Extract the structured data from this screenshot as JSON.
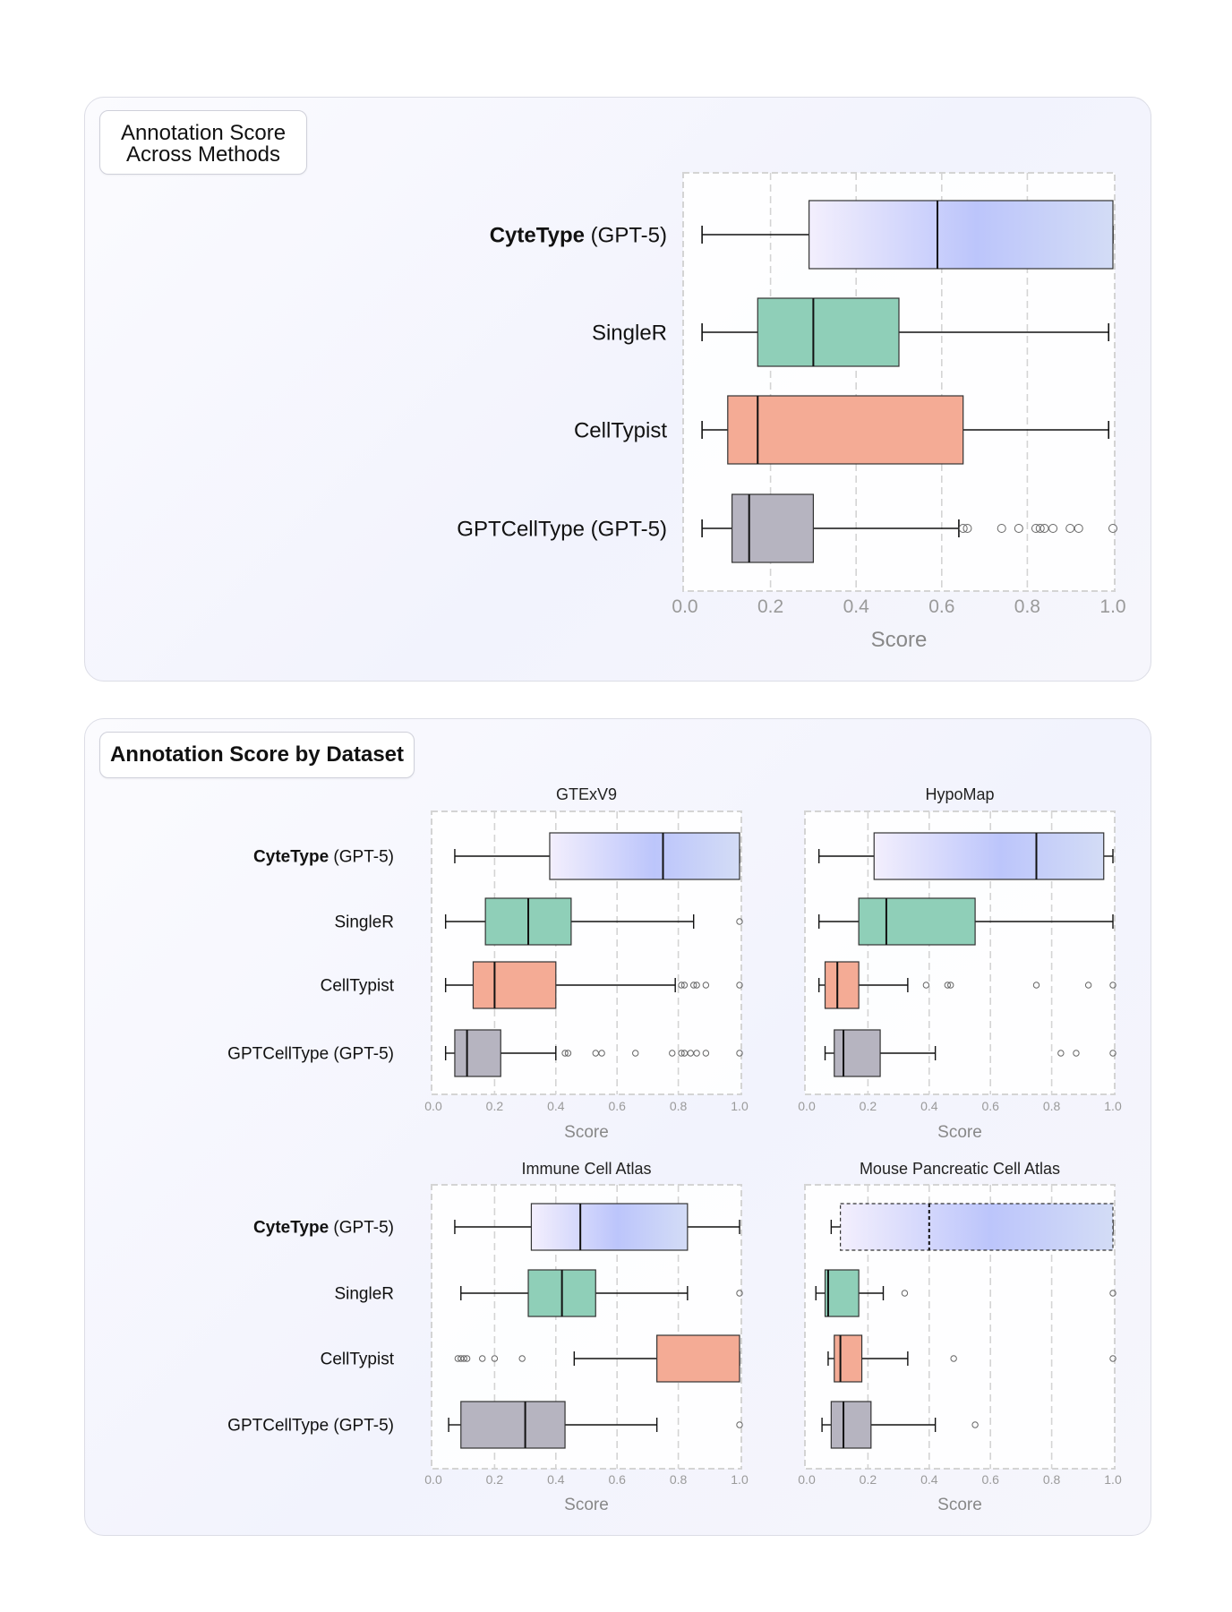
{
  "panel1": {
    "title_line1": "Annotation Score",
    "title_line2": "Across Methods"
  },
  "panel2": {
    "title": "Annotation Score by Dataset"
  },
  "colors": {
    "cytetype_gradient": [
      "#f3effd",
      "#bcc5fb",
      "#d3dcf6"
    ],
    "singler": "#8fcfb8",
    "celltypist": "#f4ab95",
    "gptcelltype": "#b6b4c0",
    "grid": "#d4d4d4",
    "tick_label": "#9a9a9a"
  },
  "chart_data": [
    {
      "type": "box",
      "orientation": "horizontal",
      "title": "",
      "xlabel": "Score",
      "xlim": [
        0,
        1
      ],
      "xticks": [
        "0.0",
        "0.2",
        "0.4",
        "0.6",
        "0.8",
        "1.0"
      ],
      "grid": "vertical dashed",
      "series": [
        {
          "name_bold": "CyteType",
          "name_rest": " (GPT-5)",
          "whislo": 0.04,
          "q1": 0.29,
          "med": 0.59,
          "q3": 1.0,
          "whishi": 1.0,
          "fliers": []
        },
        {
          "name_bold": "",
          "name_rest": "SingleR",
          "whislo": 0.04,
          "q1": 0.17,
          "med": 0.3,
          "q3": 0.5,
          "whishi": 0.99,
          "fliers": []
        },
        {
          "name_bold": "",
          "name_rest": "CellTypist",
          "whislo": 0.04,
          "q1": 0.1,
          "med": 0.17,
          "q3": 0.65,
          "whishi": 0.99,
          "fliers": []
        },
        {
          "name_bold": "",
          "name_rest": "GPTCellType (GPT-5)",
          "whislo": 0.04,
          "q1": 0.11,
          "med": 0.15,
          "q3": 0.3,
          "whishi": 0.64,
          "fliers": [
            0.65,
            0.66,
            0.74,
            0.78,
            0.82,
            0.83,
            0.84,
            0.86,
            0.9,
            0.92,
            1.0
          ]
        }
      ]
    },
    {
      "type": "box",
      "orientation": "horizontal",
      "title": "GTExV9",
      "xlabel": "Score",
      "xlim": [
        0,
        1
      ],
      "xticks": [
        "0.0",
        "0.2",
        "0.4",
        "0.6",
        "0.8",
        "1.0"
      ],
      "series": [
        {
          "name_bold": "CyteType",
          "name_rest": " (GPT-5)",
          "whislo": 0.07,
          "q1": 0.38,
          "med": 0.75,
          "q3": 1.0,
          "whishi": 1.0,
          "fliers": []
        },
        {
          "name_bold": "",
          "name_rest": "SingleR",
          "whislo": 0.04,
          "q1": 0.17,
          "med": 0.31,
          "q3": 0.45,
          "whishi": 0.85,
          "fliers": [
            1.0
          ]
        },
        {
          "name_bold": "",
          "name_rest": "CellTypist",
          "whislo": 0.04,
          "q1": 0.13,
          "med": 0.2,
          "q3": 0.4,
          "whishi": 0.79,
          "fliers": [
            0.81,
            0.82,
            0.85,
            0.86,
            0.89,
            1.0
          ]
        },
        {
          "name_bold": "",
          "name_rest": "GPTCellType (GPT-5)",
          "whislo": 0.04,
          "q1": 0.07,
          "med": 0.11,
          "q3": 0.22,
          "whishi": 0.4,
          "fliers": [
            0.43,
            0.44,
            0.53,
            0.55,
            0.66,
            0.78,
            0.81,
            0.82,
            0.84,
            0.86,
            0.89,
            1.0
          ]
        }
      ]
    },
    {
      "type": "box",
      "orientation": "horizontal",
      "title": "HypoMap",
      "xlabel": "Score",
      "xlim": [
        0,
        1
      ],
      "xticks": [
        "0.0",
        "0.2",
        "0.4",
        "0.6",
        "0.8",
        "1.0"
      ],
      "series": [
        {
          "name_bold": "CyteType",
          "name_rest": " (GPT-5)",
          "whislo": 0.04,
          "q1": 0.22,
          "med": 0.75,
          "q3": 0.97,
          "whishi": 1.0,
          "fliers": []
        },
        {
          "name_bold": "",
          "name_rest": "SingleR",
          "whislo": 0.04,
          "q1": 0.17,
          "med": 0.26,
          "q3": 0.55,
          "whishi": 1.0,
          "fliers": []
        },
        {
          "name_bold": "",
          "name_rest": "CellTypist",
          "whislo": 0.04,
          "q1": 0.06,
          "med": 0.1,
          "q3": 0.17,
          "whishi": 0.33,
          "fliers": [
            0.39,
            0.46,
            0.47,
            0.75,
            0.92,
            1.0
          ]
        },
        {
          "name_bold": "",
          "name_rest": "GPTCellType (GPT-5)",
          "whislo": 0.06,
          "q1": 0.09,
          "med": 0.12,
          "q3": 0.24,
          "whishi": 0.42,
          "fliers": [
            0.83,
            0.88,
            1.0
          ]
        }
      ]
    },
    {
      "type": "box",
      "orientation": "horizontal",
      "title": "Immune Cell Atlas",
      "xlabel": "Score",
      "xlim": [
        0,
        1
      ],
      "xticks": [
        "0.0",
        "0.2",
        "0.4",
        "0.6",
        "0.8",
        "1.0"
      ],
      "series": [
        {
          "name_bold": "CyteType",
          "name_rest": " (GPT-5)",
          "whislo": 0.07,
          "q1": 0.32,
          "med": 0.48,
          "q3": 0.83,
          "whishi": 1.0,
          "fliers": []
        },
        {
          "name_bold": "",
          "name_rest": "SingleR",
          "whislo": 0.09,
          "q1": 0.31,
          "med": 0.42,
          "q3": 0.53,
          "whishi": 0.83,
          "fliers": [
            1.0
          ]
        },
        {
          "name_bold": "",
          "name_rest": "CellTypist",
          "whislo": 0.46,
          "q1": 0.73,
          "med": null,
          "q3": 1.0,
          "whishi": 1.0,
          "fliers": [
            0.08,
            0.09,
            0.1,
            0.11,
            0.16,
            0.2,
            0.29
          ]
        },
        {
          "name_bold": "",
          "name_rest": "GPTCellType (GPT-5)",
          "whislo": 0.05,
          "q1": 0.09,
          "med": 0.3,
          "q3": 0.43,
          "whishi": 0.73,
          "fliers": [
            1.0
          ]
        }
      ]
    },
    {
      "type": "box",
      "orientation": "horizontal",
      "title": "Mouse Pancreatic Cell Atlas",
      "xlabel": "Score",
      "xlim": [
        0,
        1
      ],
      "xticks": [
        "0.0",
        "0.2",
        "0.4",
        "0.6",
        "0.8",
        "1.0"
      ],
      "series": [
        {
          "name_bold": "CyteType",
          "name_rest": " (GPT-5)",
          "whislo": 0.08,
          "q1": 0.11,
          "med": 0.4,
          "q3": 1.0,
          "whishi": 1.0,
          "fliers": [],
          "dashed": true
        },
        {
          "name_bold": "",
          "name_rest": "SingleR",
          "whislo": 0.03,
          "q1": 0.06,
          "med": 0.07,
          "q3": 0.17,
          "whishi": 0.25,
          "fliers": [
            0.32,
            1.0
          ]
        },
        {
          "name_bold": "",
          "name_rest": "CellTypist",
          "whislo": 0.07,
          "q1": 0.09,
          "med": 0.11,
          "q3": 0.18,
          "whishi": 0.33,
          "fliers": [
            0.48,
            1.0
          ]
        },
        {
          "name_bold": "",
          "name_rest": "GPTCellType (GPT-5)",
          "whislo": 0.05,
          "q1": 0.08,
          "med": 0.12,
          "q3": 0.21,
          "whishi": 0.42,
          "fliers": [
            0.55
          ]
        }
      ]
    }
  ]
}
